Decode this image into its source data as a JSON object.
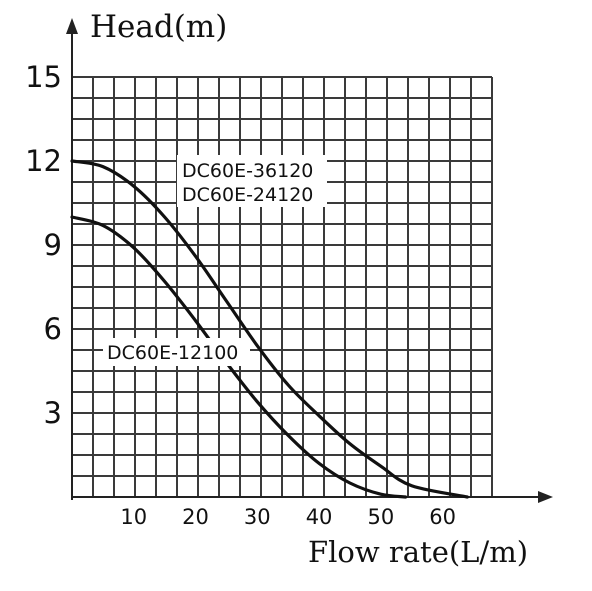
{
  "chart_data": {
    "type": "line",
    "ylabel": "Head(m)",
    "xlabel": "Flow rate(L/m)",
    "xlim": [
      0,
      68
    ],
    "ylim": [
      0,
      15
    ],
    "x_ticks": [
      10,
      20,
      30,
      40,
      50,
      60
    ],
    "y_ticks": [
      3,
      6,
      9,
      12,
      15
    ],
    "grid": true,
    "series": [
      {
        "name": "DC60E-36120 / DC60E-24120",
        "labels": [
          "DC60E-36120",
          "DC60E-24120"
        ],
        "points": [
          [
            0,
            12.0
          ],
          [
            5,
            11.8
          ],
          [
            10,
            11.1
          ],
          [
            15,
            10.0
          ],
          [
            20,
            8.6
          ],
          [
            25,
            7.0
          ],
          [
            30,
            5.4
          ],
          [
            35,
            4.0
          ],
          [
            40,
            2.9
          ],
          [
            45,
            1.9
          ],
          [
            50,
            1.1
          ],
          [
            55,
            0.4
          ],
          [
            64,
            0.0
          ]
        ]
      },
      {
        "name": "DC60E-12100",
        "labels": [
          "DC60E-12100"
        ],
        "points": [
          [
            0,
            10.0
          ],
          [
            5,
            9.7
          ],
          [
            10,
            8.9
          ],
          [
            15,
            7.7
          ],
          [
            20,
            6.3
          ],
          [
            25,
            4.8
          ],
          [
            30,
            3.4
          ],
          [
            35,
            2.2
          ],
          [
            40,
            1.2
          ],
          [
            45,
            0.5
          ],
          [
            50,
            0.1
          ],
          [
            54,
            0.0
          ]
        ]
      }
    ]
  }
}
